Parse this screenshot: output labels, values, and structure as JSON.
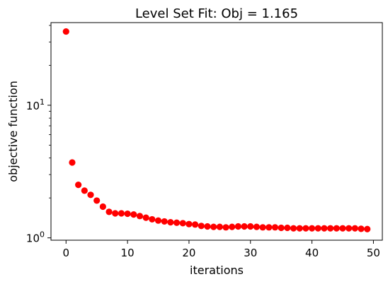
{
  "chart_data": {
    "type": "scatter",
    "title": "Level Set Fit: Obj = 1.165",
    "xlabel": "iterations",
    "ylabel": "objective function",
    "xlim": [
      -2.45,
      51.45
    ],
    "ylim": [
      0.96,
      42
    ],
    "yscale": "log",
    "grid": false,
    "x_ticks": [
      {
        "value": 0,
        "label": "0"
      },
      {
        "value": 10,
        "label": "10"
      },
      {
        "value": 20,
        "label": "20"
      },
      {
        "value": 30,
        "label": "30"
      },
      {
        "value": 40,
        "label": "40"
      },
      {
        "value": 50,
        "label": "50"
      }
    ],
    "y_major_ticks": [
      {
        "value": 1,
        "base": "10",
        "exp": "0"
      },
      {
        "value": 10,
        "base": "10",
        "exp": "1"
      }
    ],
    "y_minor_ticks": [
      2,
      3,
      4,
      5,
      6,
      7,
      8,
      9,
      20,
      30,
      40
    ],
    "series": [
      {
        "color": "#ff0000",
        "x": [
          0,
          1,
          2,
          3,
          4,
          5,
          6,
          7,
          8,
          9,
          10,
          11,
          12,
          13,
          14,
          15,
          16,
          17,
          18,
          19,
          20,
          21,
          22,
          23,
          24,
          25,
          26,
          27,
          28,
          29,
          30,
          31,
          32,
          33,
          34,
          35,
          36,
          37,
          38,
          39,
          40,
          41,
          42,
          43,
          44,
          45,
          46,
          47,
          48,
          49
        ],
        "y": [
          36.0,
          3.7,
          2.51,
          2.27,
          2.11,
          1.91,
          1.72,
          1.57,
          1.53,
          1.53,
          1.52,
          1.5,
          1.46,
          1.42,
          1.38,
          1.35,
          1.33,
          1.31,
          1.3,
          1.29,
          1.27,
          1.26,
          1.23,
          1.22,
          1.21,
          1.21,
          1.2,
          1.21,
          1.22,
          1.22,
          1.22,
          1.21,
          1.2,
          1.2,
          1.2,
          1.19,
          1.19,
          1.18,
          1.18,
          1.18,
          1.18,
          1.18,
          1.18,
          1.18,
          1.18,
          1.18,
          1.18,
          1.18,
          1.17,
          1.165
        ]
      }
    ]
  }
}
